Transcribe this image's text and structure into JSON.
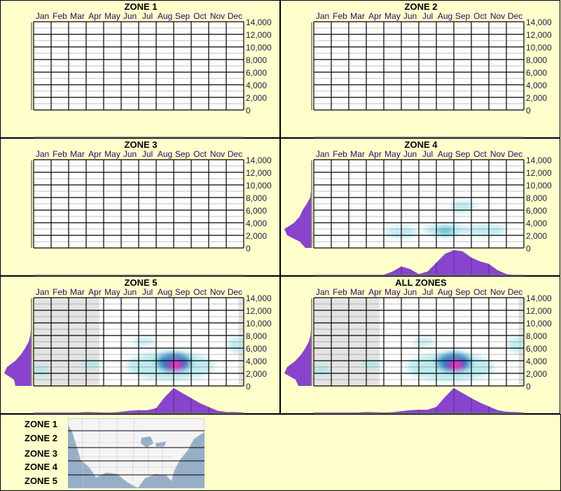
{
  "colors": {
    "background": "#FFFFCC",
    "month_label": "#330066",
    "axis_label": "#222244",
    "density": "#8844CC",
    "low": "#9FE3E8",
    "mid": "#2E8FC4",
    "high": "#0A14C8",
    "peak": "#FF2FC8",
    "no_data": "#E4E4E4"
  },
  "chart_data": [
    {
      "type": "heatmap",
      "title": "ZONE 1",
      "categories": [
        "Jan",
        "Feb",
        "Mar",
        "Apr",
        "May",
        "Jun",
        "Jul",
        "Aug",
        "Sep",
        "Oct",
        "Nov",
        "Dec"
      ],
      "yticks": [
        "14,000",
        "12,000",
        "10,000",
        "8,000",
        "6,000",
        "4,000",
        "2,000",
        "0"
      ],
      "ylim": [
        0,
        14000
      ],
      "blobs": [],
      "month_density": [],
      "altitude_density": [],
      "no_data": []
    },
    {
      "type": "heatmap",
      "title": "ZONE 2",
      "categories": [
        "Jan",
        "Feb",
        "Mar",
        "Apr",
        "May",
        "Jun",
        "Jul",
        "Aug",
        "Sep",
        "Oct",
        "Nov",
        "Dec"
      ],
      "yticks": [
        "14,000",
        "12,000",
        "10,000",
        "8,000",
        "6,000",
        "4,000",
        "2,000",
        "0"
      ],
      "ylim": [
        0,
        14000
      ],
      "blobs": [],
      "month_density": [],
      "altitude_density": [],
      "no_data": []
    },
    {
      "type": "heatmap",
      "title": "ZONE 3",
      "categories": [
        "Jan",
        "Feb",
        "Mar",
        "Apr",
        "May",
        "Jun",
        "Jul",
        "Aug",
        "Sep",
        "Oct",
        "Nov",
        "Dec"
      ],
      "yticks": [
        "14,000",
        "12,000",
        "10,000",
        "8,000",
        "6,000",
        "4,000",
        "2,000",
        "0"
      ],
      "ylim": [
        0,
        14000
      ],
      "blobs": [],
      "month_density": [],
      "altitude_density": [],
      "no_data": []
    },
    {
      "type": "heatmap",
      "title": "ZONE 4",
      "categories": [
        "Jan",
        "Feb",
        "Mar",
        "Apr",
        "May",
        "Jun",
        "Jul",
        "Aug",
        "Sep",
        "Oct",
        "Nov",
        "Dec"
      ],
      "yticks": [
        "14,000",
        "12,000",
        "10,000",
        "8,000",
        "6,000",
        "4,000",
        "2,000",
        "0"
      ],
      "ylim": [
        0,
        14000
      ],
      "blobs": [
        {
          "month": 5.0,
          "alt": 2500,
          "level": "low",
          "sm": 0.9,
          "sa": 900
        },
        {
          "month": 7.5,
          "alt": 2800,
          "level": "low",
          "sm": 1.2,
          "sa": 1000
        },
        {
          "month": 8.5,
          "alt": 6500,
          "level": "low",
          "sm": 0.7,
          "sa": 900
        },
        {
          "month": 9.8,
          "alt": 2800,
          "level": "low",
          "sm": 1.2,
          "sa": 900
        },
        {
          "month": 7.5,
          "alt": 2700,
          "level": "lowmid",
          "sm": 0.5,
          "sa": 600
        }
      ],
      "month_density": [
        0,
        0,
        0,
        0,
        0,
        0,
        0,
        0,
        0.02,
        0.15,
        0.35,
        0.25,
        0.05,
        0.15,
        0.5,
        0.85,
        1.0,
        0.95,
        0.7,
        0.55,
        0.45,
        0.2,
        0.05,
        0,
        0
      ],
      "altitude_density": [
        0.2,
        0.4,
        0.85,
        0.95,
        0.6,
        0.4,
        0.3,
        0.15,
        0.03,
        0,
        0,
        0,
        0,
        0,
        0
      ],
      "no_data": []
    },
    {
      "type": "heatmap",
      "title": "ZONE 5",
      "categories": [
        "Jan",
        "Feb",
        "Mar",
        "Apr",
        "May",
        "Jun",
        "Jul",
        "Aug",
        "Sep",
        "Oct",
        "Nov",
        "Dec"
      ],
      "yticks": [
        "14,000",
        "12,000",
        "10,000",
        "8,000",
        "6,000",
        "4,000",
        "2,000",
        "0"
      ],
      "ylim": [
        0,
        14000
      ],
      "blobs": [
        {
          "month": 0.4,
          "alt": 2500,
          "level": "low",
          "sm": 0.5,
          "sa": 800
        },
        {
          "month": 3.3,
          "alt": 3500,
          "level": "low",
          "sm": 0.5,
          "sa": 700
        },
        {
          "month": 6.3,
          "alt": 7000,
          "level": "low",
          "sm": 0.6,
          "sa": 600
        },
        {
          "month": 11.6,
          "alt": 6500,
          "level": "low",
          "sm": 0.5,
          "sa": 1200
        },
        {
          "month": 7.8,
          "alt": 3200,
          "level": "low",
          "sm": 2.5,
          "sa": 2200
        },
        {
          "month": 8.0,
          "alt": 3800,
          "level": "mid",
          "sm": 1.0,
          "sa": 1500
        },
        {
          "month": 8.1,
          "alt": 3300,
          "level": "high",
          "sm": 0.6,
          "sa": 1000
        },
        {
          "month": 8.1,
          "alt": 3300,
          "level": "peak",
          "sm": 0.35,
          "sa": 700
        }
      ],
      "month_density": [
        0.03,
        0.03,
        0.03,
        0.03,
        0.03,
        0.03,
        0.05,
        0.04,
        0.03,
        0.03,
        0.06,
        0.1,
        0.12,
        0.12,
        0.2,
        0.65,
        1.0,
        0.8,
        0.6,
        0.4,
        0.25,
        0.1,
        0.05,
        0.05,
        0.03
      ],
      "altitude_density": [
        0.55,
        0.6,
        0.95,
        0.85,
        0.55,
        0.35,
        0.2,
        0.08,
        0.02,
        0,
        0,
        0,
        0,
        0,
        0
      ],
      "no_data": [
        [
          0,
          3.75
        ],
        [
          11.7,
          12
        ]
      ]
    },
    {
      "type": "heatmap",
      "title": "ALL ZONES",
      "categories": [
        "Jan",
        "Feb",
        "Mar",
        "Apr",
        "May",
        "Jun",
        "Jul",
        "Aug",
        "Sep",
        "Oct",
        "Nov",
        "Dec"
      ],
      "yticks": [
        "14,000",
        "12,000",
        "10,000",
        "8,000",
        "6,000",
        "4,000",
        "2,000",
        "0"
      ],
      "ylim": [
        0,
        14000
      ],
      "blobs": [
        {
          "month": 0.4,
          "alt": 2500,
          "level": "low",
          "sm": 0.5,
          "sa": 800
        },
        {
          "month": 3.3,
          "alt": 3500,
          "level": "low",
          "sm": 0.5,
          "sa": 700
        },
        {
          "month": 6.3,
          "alt": 7000,
          "level": "low",
          "sm": 0.6,
          "sa": 600
        },
        {
          "month": 11.6,
          "alt": 6500,
          "level": "low",
          "sm": 0.5,
          "sa": 1200
        },
        {
          "month": 7.8,
          "alt": 3000,
          "level": "low",
          "sm": 2.5,
          "sa": 2200
        },
        {
          "month": 8.0,
          "alt": 3800,
          "level": "mid",
          "sm": 1.0,
          "sa": 1500
        },
        {
          "month": 8.1,
          "alt": 3300,
          "level": "high",
          "sm": 0.6,
          "sa": 1000
        },
        {
          "month": 8.1,
          "alt": 3300,
          "level": "peak",
          "sm": 0.35,
          "sa": 700
        }
      ],
      "month_density": [
        0.03,
        0.03,
        0.03,
        0.03,
        0.03,
        0.03,
        0.05,
        0.04,
        0.03,
        0.04,
        0.08,
        0.12,
        0.14,
        0.14,
        0.25,
        0.65,
        1.0,
        0.8,
        0.6,
        0.42,
        0.27,
        0.12,
        0.06,
        0.05,
        0.03
      ],
      "altitude_density": [
        0.45,
        0.55,
        0.95,
        0.85,
        0.55,
        0.35,
        0.2,
        0.08,
        0.02,
        0,
        0,
        0,
        0,
        0,
        0
      ],
      "no_data": [
        [
          0,
          3.75
        ],
        [
          11.7,
          12
        ]
      ]
    }
  ],
  "legend": {
    "zones": [
      "ZONE 1",
      "ZONE 2",
      "ZONE 3",
      "ZONE 4",
      "ZONE 5"
    ]
  }
}
